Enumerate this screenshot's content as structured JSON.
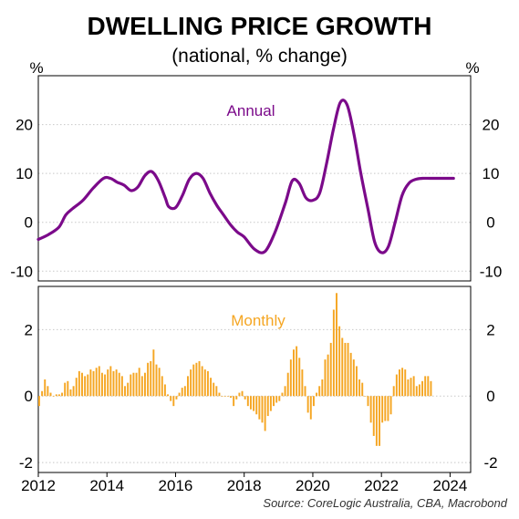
{
  "title": "DWELLING PRICE GROWTH",
  "subtitle": "(national, % change)",
  "source": "Source: CoreLogic Australia, CBA, Macrobond",
  "colors": {
    "annual": "#7b0a8a",
    "monthly": "#f5a623",
    "grid": "#c8c8c8"
  },
  "chart_data": [
    {
      "type": "line",
      "series": [
        {
          "name": "Annual",
          "color": "#7b0a8a"
        }
      ],
      "unit_left": "%",
      "unit_right": "%",
      "ylim": [
        -12,
        30
      ],
      "yticks": [
        -10,
        0,
        10,
        20
      ],
      "ytick_labels": [
        "-10",
        "0",
        "10",
        "20"
      ],
      "grid": true,
      "x": [
        2012.0,
        2012.3,
        2012.6,
        2012.8,
        2013.0,
        2013.3,
        2013.6,
        2013.9,
        2014.1,
        2014.3,
        2014.5,
        2014.7,
        2014.9,
        2015.1,
        2015.3,
        2015.5,
        2015.7,
        2015.8,
        2016.0,
        2016.2,
        2016.4,
        2016.6,
        2016.8,
        2017.0,
        2017.2,
        2017.4,
        2017.6,
        2017.8,
        2018.0,
        2018.3,
        2018.6,
        2018.9,
        2019.2,
        2019.4,
        2019.6,
        2019.8,
        2020.0,
        2020.2,
        2020.4,
        2020.6,
        2020.8,
        2021.0,
        2021.2,
        2021.4,
        2021.6,
        2021.8,
        2022.0,
        2022.2,
        2022.4,
        2022.6,
        2022.8,
        2023.0,
        2023.2,
        2023.4,
        2023.6,
        2023.8,
        2024.0,
        2024.1
      ],
      "y": [
        -3.5,
        -2.5,
        -1.0,
        1.5,
        2.8,
        4.5,
        7.0,
        9.0,
        9.0,
        8.2,
        7.6,
        6.5,
        7.2,
        9.5,
        10.4,
        8.5,
        5.0,
        3.2,
        3.0,
        5.5,
        8.8,
        10.0,
        9.0,
        6.0,
        3.5,
        1.5,
        -0.5,
        -2.0,
        -3.0,
        -5.5,
        -6.0,
        -2.0,
        4.0,
        8.5,
        8.0,
        5.0,
        4.5,
        6.0,
        12.0,
        19.0,
        24.5,
        24.0,
        18.0,
        10.0,
        3.0,
        -4.0,
        -6.2,
        -5.0,
        0.0,
        5.5,
        8.0,
        8.8,
        9.0,
        9.0,
        9.0,
        9.0,
        9.0,
        9.0
      ]
    },
    {
      "type": "bar",
      "series": [
        {
          "name": "Monthly",
          "color": "#f5a623"
        }
      ],
      "ylim": [
        -2.3,
        3.3
      ],
      "yticks": [
        -2,
        0,
        2
      ],
      "ytick_labels": [
        "-2",
        "0",
        "2"
      ],
      "grid": true,
      "xlim": [
        2012.0,
        2024.6
      ],
      "xticks": [
        2012,
        2014,
        2016,
        2018,
        2020,
        2022,
        2024
      ],
      "xtick_labels": [
        "2012",
        "2014",
        "2016",
        "2018",
        "2020",
        "2022",
        "2024"
      ],
      "start": 2012.0,
      "step_months": 1,
      "values": [
        -0.3,
        0.15,
        0.5,
        0.3,
        0.1,
        0.0,
        0.05,
        0.05,
        0.1,
        0.4,
        0.45,
        0.2,
        0.3,
        0.55,
        0.75,
        0.7,
        0.6,
        0.65,
        0.8,
        0.75,
        0.85,
        0.9,
        0.7,
        0.65,
        0.8,
        0.9,
        0.75,
        0.8,
        0.7,
        0.6,
        0.3,
        0.4,
        0.65,
        0.7,
        0.7,
        0.85,
        0.6,
        0.7,
        1.0,
        1.05,
        1.4,
        0.95,
        0.85,
        0.6,
        0.35,
        0.05,
        -0.15,
        -0.3,
        -0.1,
        0.1,
        0.25,
        0.3,
        0.6,
        0.8,
        0.95,
        1.0,
        1.05,
        0.9,
        0.8,
        0.75,
        0.55,
        0.4,
        0.3,
        0.1,
        0.0,
        0.0,
        0.0,
        -0.05,
        -0.3,
        -0.1,
        0.1,
        0.15,
        -0.1,
        -0.3,
        -0.4,
        -0.45,
        -0.55,
        -0.7,
        -0.8,
        -1.05,
        -0.6,
        -0.45,
        -0.3,
        -0.2,
        -0.15,
        0.1,
        0.3,
        0.7,
        1.1,
        1.4,
        1.5,
        1.15,
        0.8,
        0.3,
        -0.5,
        -0.7,
        -0.3,
        0.1,
        0.3,
        0.5,
        1.1,
        1.25,
        1.6,
        2.6,
        3.1,
        2.1,
        1.75,
        1.6,
        1.6,
        1.3,
        1.1,
        0.9,
        0.5,
        0.4,
        0.0,
        -0.3,
        -0.8,
        -1.2,
        -1.5,
        -1.5,
        -0.8,
        -0.75,
        -0.75,
        -0.55,
        0.3,
        0.65,
        0.8,
        0.85,
        0.8,
        0.5,
        0.55,
        0.6,
        0.3,
        0.35,
        0.45,
        0.6,
        0.6,
        0.45
      ]
    }
  ]
}
